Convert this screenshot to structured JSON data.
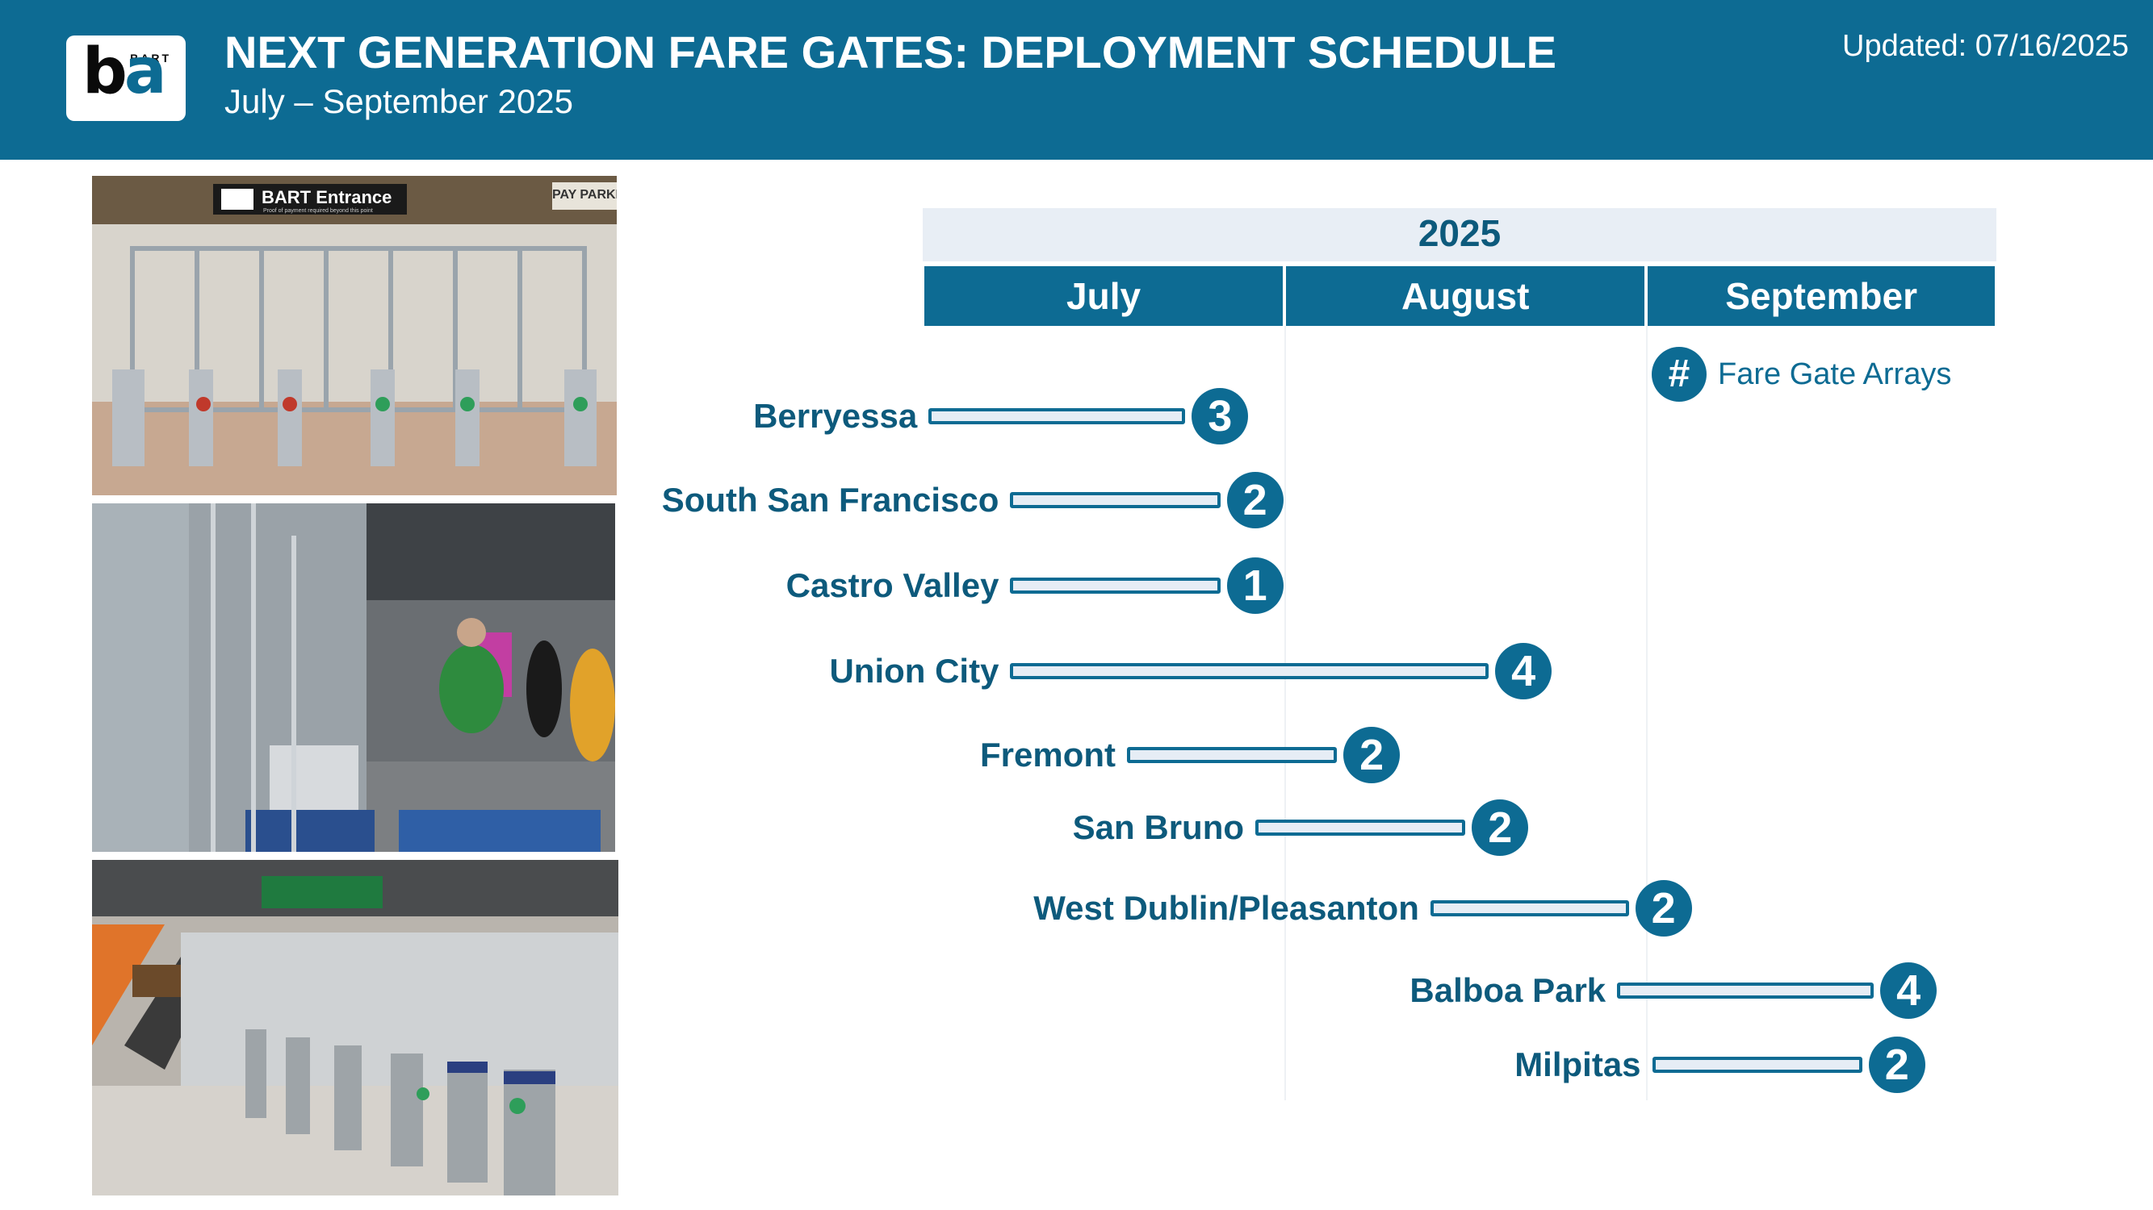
{
  "header": {
    "logo_text": "ba",
    "logo_small": "BART",
    "title": "NEXT GENERATION FARE GATES: DEPLOYMENT SCHEDULE",
    "subtitle": "July – September 2025",
    "updated": "Updated: 07/16/2025"
  },
  "photos": [
    {
      "name": "photo-bart-entrance-gates",
      "sign": "BART Entrance",
      "sign_sub": "Proof of payment required beyond this point",
      "parking": "PAY PARKIN"
    },
    {
      "name": "photo-station-gates-passengers"
    },
    {
      "name": "photo-gate-array-platform"
    }
  ],
  "legend": {
    "symbol": "#",
    "label": "Fare Gate Arrays"
  },
  "chart_data": {
    "type": "gantt",
    "year": "2025",
    "months": [
      "July",
      "August",
      "September"
    ],
    "time_range": [
      "2025-07-01",
      "2025-09-30"
    ],
    "stations": [
      {
        "name": "Berryessa",
        "start": "2025-07-01",
        "end": "2025-07-23",
        "arrays": "3"
      },
      {
        "name": "South San Francisco",
        "start": "2025-07-08",
        "end": "2025-07-26",
        "arrays": "2"
      },
      {
        "name": "Castro Valley",
        "start": "2025-07-08",
        "end": "2025-07-26",
        "arrays": "1"
      },
      {
        "name": "Union City",
        "start": "2025-07-08",
        "end": "2025-08-18",
        "arrays": "4"
      },
      {
        "name": "Fremont",
        "start": "2025-07-18",
        "end": "2025-08-05",
        "arrays": "2"
      },
      {
        "name": "San Bruno",
        "start": "2025-07-29",
        "end": "2025-08-16",
        "arrays": "2"
      },
      {
        "name": "West Dublin/Pleasanton",
        "start": "2025-08-13",
        "end": "2025-08-30",
        "arrays": "2"
      },
      {
        "name": "Balboa Park",
        "start": "2025-08-29",
        "end": "2025-09-20",
        "arrays": "4"
      },
      {
        "name": "Milpitas",
        "start": "2025-09-01",
        "end": "2025-09-19",
        "arrays": "2"
      }
    ]
  },
  "colors": {
    "accent": "#0d6b93",
    "bar_fill": "#e6edf5",
    "band": "#e8eef5"
  }
}
